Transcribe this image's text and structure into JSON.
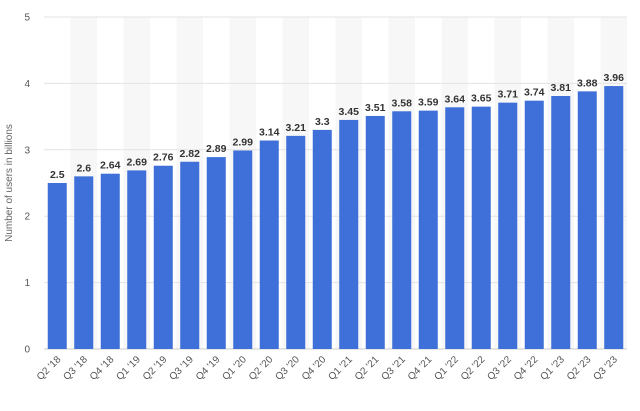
{
  "chart_data": {
    "type": "bar",
    "categories": [
      "Q2 '18",
      "Q3 '18",
      "Q4 '18",
      "Q1 '19",
      "Q2 '19",
      "Q3 '19",
      "Q4 '19",
      "Q1 '20",
      "Q2 '20",
      "Q3 '20",
      "Q4 '20",
      "Q1 '21",
      "Q2 '21",
      "Q3 '21",
      "Q4 '21",
      "Q1 '22",
      "Q2 '22",
      "Q3 '22",
      "Q4 '22",
      "Q1 '23",
      "Q2 '23",
      "Q3 '23"
    ],
    "values": [
      2.5,
      2.6,
      2.64,
      2.69,
      2.76,
      2.82,
      2.89,
      2.99,
      3.14,
      3.21,
      3.3,
      3.45,
      3.51,
      3.58,
      3.59,
      3.64,
      3.65,
      3.71,
      3.74,
      3.81,
      3.88,
      3.96
    ],
    "value_labels": [
      "2.5",
      "2.6",
      "2.64",
      "2.69",
      "2.76",
      "2.82",
      "2.89",
      "2.99",
      "3.14",
      "3.21",
      "3.3",
      "3.45",
      "3.51",
      "3.58",
      "3.59",
      "3.64",
      "3.65",
      "3.71",
      "3.74",
      "3.81",
      "3.88",
      "3.96"
    ],
    "ylabel": "Number of users in billions",
    "ylim": [
      0,
      5
    ],
    "yticks": [
      "0",
      "1",
      "2",
      "3",
      "4",
      "5"
    ],
    "grid": true,
    "bar_color": "#3f6fd8",
    "band_color": "#f7f7f7"
  }
}
